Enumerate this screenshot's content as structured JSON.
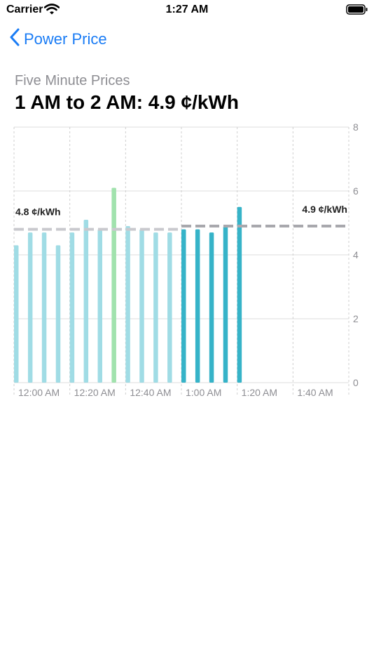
{
  "status_bar": {
    "carrier": "Carrier",
    "time": "1:27 AM"
  },
  "nav": {
    "back_label": "Power Price"
  },
  "header": {
    "subtitle": "Five Minute Prices",
    "headline": "1 AM to 2 AM: 4.9 ¢/kWh"
  },
  "colors": {
    "accent": "#1a7cf5",
    "past_hour_bar": "#a0dce5",
    "peak_bar": "#a1e2ad",
    "current_hour_bar": "#36b3c8",
    "average_line_past": "#c9c9ce",
    "average_line_current": "#a8a8ad",
    "grid": "#dcdcdc"
  },
  "chart_data": {
    "type": "bar",
    "x_tick_labels": [
      "12:00 AM",
      "12:20 AM",
      "12:40 AM",
      "1:00 AM",
      "1:20 AM",
      "1:40 AM"
    ],
    "y_ticks": [
      0,
      2,
      4,
      6,
      8
    ],
    "ylim": [
      0,
      8
    ],
    "series": [
      {
        "times": [
          "12:00 AM",
          "12:05 AM",
          "12:10 AM",
          "12:15 AM",
          "12:20 AM",
          "12:25 AM",
          "12:30 AM",
          "12:35 AM",
          "12:40 AM",
          "12:45 AM",
          "12:50 AM",
          "12:55 AM"
        ],
        "values": [
          4.3,
          4.7,
          4.7,
          4.3,
          4.7,
          5.1,
          4.8,
          6.1,
          4.9,
          4.8,
          4.7,
          4.7
        ],
        "highlight": {
          "time": "12:35 AM",
          "value": 6.1
        }
      },
      {
        "times": [
          "1:00 AM",
          "1:05 AM",
          "1:10 AM",
          "1:15 AM",
          "1:20 AM"
        ],
        "values": [
          4.8,
          4.8,
          4.7,
          4.9,
          5.5
        ]
      }
    ],
    "average_lines": [
      {
        "value": 4.8,
        "from": "12:00 AM",
        "to": "1:00 AM",
        "label": "4.8 ¢/kWh"
      },
      {
        "value": 4.9,
        "from": "1:00 AM",
        "to": "2:00 AM",
        "label": "4.9 ¢/kWh"
      }
    ],
    "grid": true,
    "y_axis_side": "right"
  }
}
